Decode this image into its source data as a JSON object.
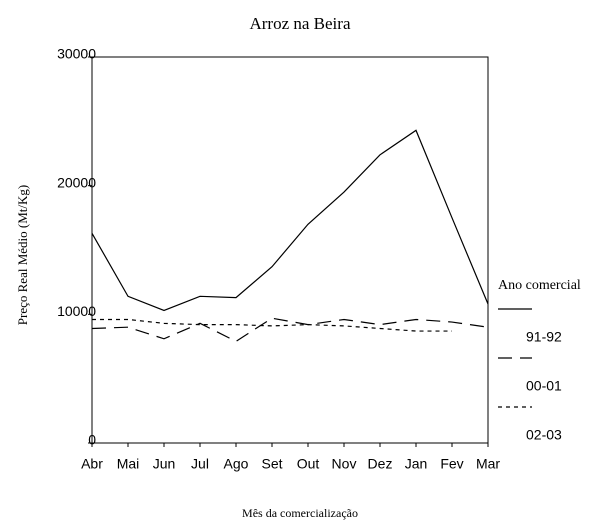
{
  "chart_data": {
    "type": "line",
    "title": "Arroz na Beira",
    "xlabel": "Mês da comercialização",
    "ylabel": "Preço Real Médio (Mt/Kg)",
    "categories": [
      "Abr",
      "Mai",
      "Jun",
      "Jul",
      "Ago",
      "Set",
      "Out",
      "Nov",
      "Dez",
      "Jan",
      "Fev",
      "Mar"
    ],
    "series": [
      {
        "name": "91-92",
        "color": "#000000",
        "dash": "solid",
        "values": [
          16300,
          11400,
          10300,
          11400,
          11300,
          13700,
          17000,
          19500,
          22400,
          24300,
          17500,
          10800
        ]
      },
      {
        "name": "00-01",
        "color": "#000000",
        "dash": "long",
        "values": [
          8900,
          9000,
          8100,
          9300,
          7900,
          9700,
          9200,
          9600,
          9200,
          9600,
          9400,
          9000
        ]
      },
      {
        "name": "02-03",
        "color": "#000000",
        "dash": "short",
        "values": [
          9600,
          9600,
          9300,
          9200,
          9200,
          9100,
          9200,
          9100,
          8900,
          8700,
          8700,
          null
        ]
      }
    ],
    "legend_title": "Ano comercial",
    "legend": "right",
    "ylim": [
      0,
      30000
    ],
    "yticks": [
      0,
      10000,
      20000,
      30000
    ],
    "grid": false
  }
}
